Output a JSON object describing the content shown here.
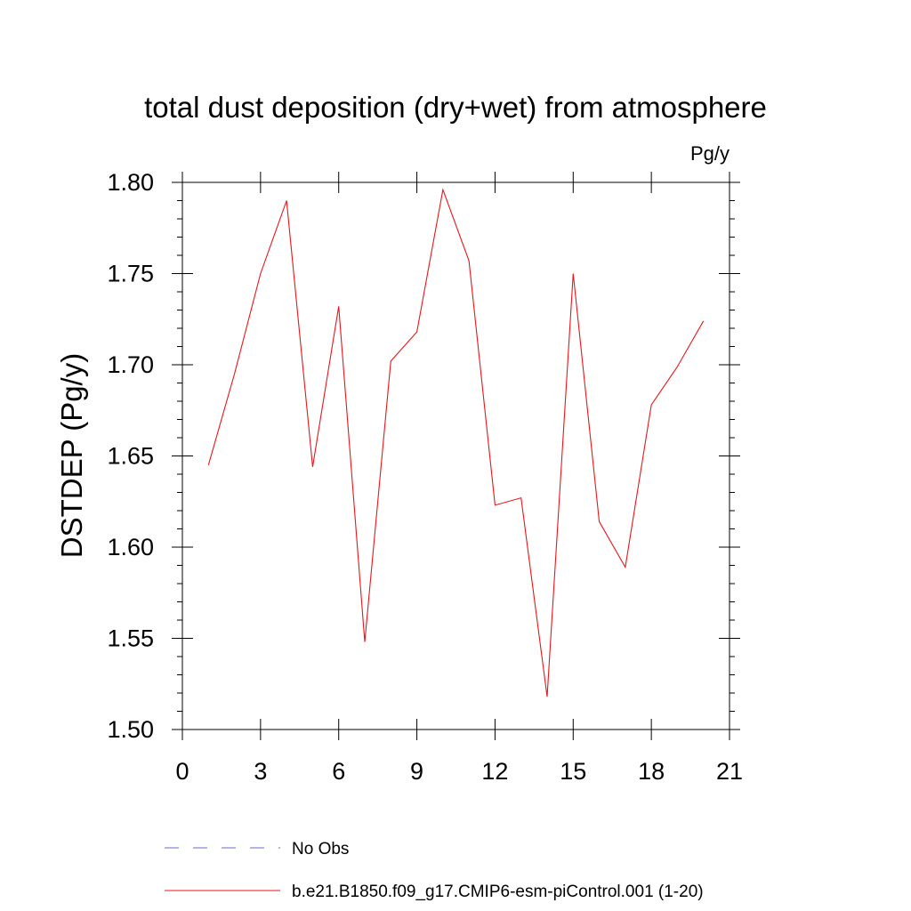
{
  "chart_data": {
    "type": "line",
    "title": "total dust deposition (dry+wet) from atmosphere",
    "units_label": "Pg/y",
    "ylabel": "DSTDEP  (Pg/y)",
    "xlabel": "",
    "xlim": [
      0,
      21
    ],
    "ylim": [
      1.5,
      1.8
    ],
    "x_ticks": [
      0,
      3,
      6,
      9,
      12,
      15,
      18,
      21
    ],
    "x_tick_labels": [
      "0",
      "3",
      "6",
      "9",
      "12",
      "15",
      "18",
      "21"
    ],
    "y_ticks": [
      1.5,
      1.55,
      1.6,
      1.65,
      1.7,
      1.75,
      1.8
    ],
    "y_tick_labels": [
      "1.50",
      "1.55",
      "1.60",
      "1.65",
      "1.70",
      "1.75",
      "1.80"
    ],
    "grid": false,
    "legend_position": "bottom",
    "series": [
      {
        "name": "No Obs",
        "color": "#6a6ad0",
        "style": "dashed",
        "x": [],
        "values": []
      },
      {
        "name": "b.e21.B1850.f09_g17.CMIP6-esm-piControl.001 (1-20)",
        "color": "#e8161b",
        "style": "solid",
        "x": [
          1,
          2,
          3,
          4,
          5,
          6,
          7,
          8,
          9,
          10,
          11,
          12,
          13,
          14,
          15,
          16,
          17,
          18,
          19,
          20
        ],
        "values": [
          1.645,
          1.695,
          1.75,
          1.79,
          1.644,
          1.732,
          1.548,
          1.702,
          1.718,
          1.796,
          1.757,
          1.623,
          1.627,
          1.518,
          1.75,
          1.614,
          1.589,
          1.678,
          1.699,
          1.724
        ]
      }
    ]
  }
}
